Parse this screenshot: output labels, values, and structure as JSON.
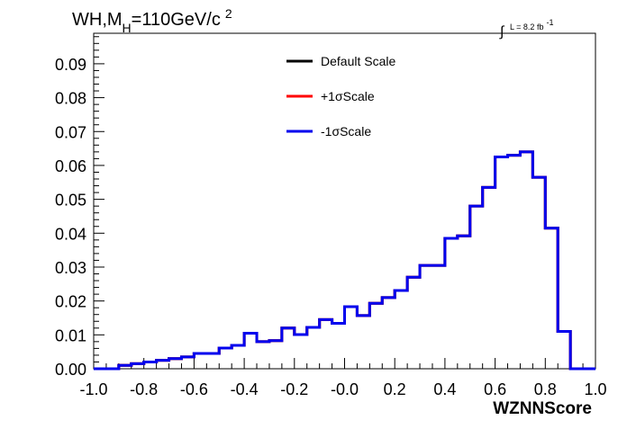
{
  "chart_data": {
    "type": "line",
    "subtype": "step-histogram",
    "title": {
      "prefix": "WH,M",
      "subscript": "H",
      "suffix": "=110GeV/c",
      "superscript": "2"
    },
    "lumi": {
      "integral": "∫",
      "text": "L = 8.2 fb",
      "superscript": "-1"
    },
    "xlabel": "WZNNScore",
    "ylabel": "",
    "xlim": [
      -1.0,
      1.0
    ],
    "ylim": [
      0.0,
      0.099
    ],
    "x_ticks": [
      "-1.0",
      "-0.8",
      "-0.6",
      "-0.4",
      "-0.2",
      "-0.0",
      "0.2",
      "0.4",
      "0.6",
      "0.8",
      "1.0"
    ],
    "y_ticks": [
      "0.00",
      "0.01",
      "0.02",
      "0.03",
      "0.04",
      "0.05",
      "0.06",
      "0.07",
      "0.08",
      "0.09"
    ],
    "bin_edges": [
      -1.0,
      -0.95,
      -0.9,
      -0.85,
      -0.8,
      -0.75,
      -0.7,
      -0.65,
      -0.6,
      -0.55,
      -0.5,
      -0.45,
      -0.4,
      -0.35,
      -0.3,
      -0.25,
      -0.2,
      -0.15,
      -0.1,
      -0.05,
      0.0,
      0.05,
      0.1,
      0.15,
      0.2,
      0.25,
      0.3,
      0.35,
      0.4,
      0.45,
      0.5,
      0.55,
      0.6,
      0.65,
      0.7,
      0.75,
      0.8,
      0.85,
      0.9,
      0.95,
      1.0
    ],
    "series": [
      {
        "name": "Default Scale",
        "color": "#000000",
        "values": [
          0.0,
          0.0,
          0.001,
          0.0015,
          0.002,
          0.0025,
          0.003,
          0.0035,
          0.0045,
          0.0045,
          0.0061,
          0.0069,
          0.0105,
          0.008,
          0.0083,
          0.012,
          0.0101,
          0.0122,
          0.0145,
          0.0134,
          0.0183,
          0.0157,
          0.0193,
          0.021,
          0.0231,
          0.027,
          0.0305,
          0.0305,
          0.0385,
          0.0392,
          0.048,
          0.0535,
          0.0625,
          0.063,
          0.064,
          0.0565,
          0.0415,
          0.011,
          0.0,
          0.0
        ]
      },
      {
        "name": "+1σScale",
        "color": "#ff0000",
        "values": [
          0.0,
          0.0,
          0.001,
          0.0015,
          0.002,
          0.0025,
          0.003,
          0.0035,
          0.0045,
          0.0045,
          0.0061,
          0.0069,
          0.0105,
          0.008,
          0.0083,
          0.012,
          0.0101,
          0.0122,
          0.0145,
          0.0134,
          0.0183,
          0.0157,
          0.0193,
          0.021,
          0.0231,
          0.027,
          0.0305,
          0.0305,
          0.0385,
          0.0392,
          0.048,
          0.0535,
          0.0625,
          0.063,
          0.064,
          0.0565,
          0.0415,
          0.011,
          0.0,
          0.0
        ]
      },
      {
        "name": "-1σScale",
        "color": "#0000ee",
        "values": [
          0.0,
          0.0,
          0.001,
          0.0015,
          0.002,
          0.0025,
          0.003,
          0.0035,
          0.0045,
          0.0045,
          0.0061,
          0.0069,
          0.0105,
          0.008,
          0.0083,
          0.012,
          0.0101,
          0.0122,
          0.0145,
          0.0134,
          0.0183,
          0.0157,
          0.0193,
          0.021,
          0.0231,
          0.027,
          0.0305,
          0.0305,
          0.0385,
          0.0392,
          0.048,
          0.0535,
          0.0625,
          0.063,
          0.064,
          0.0565,
          0.0415,
          0.011,
          0.0,
          0.0
        ]
      }
    ],
    "legend": {
      "position": "top-center",
      "entries": [
        "Default Scale",
        "+1σScale",
        "-1σScale"
      ]
    },
    "grid": false
  }
}
